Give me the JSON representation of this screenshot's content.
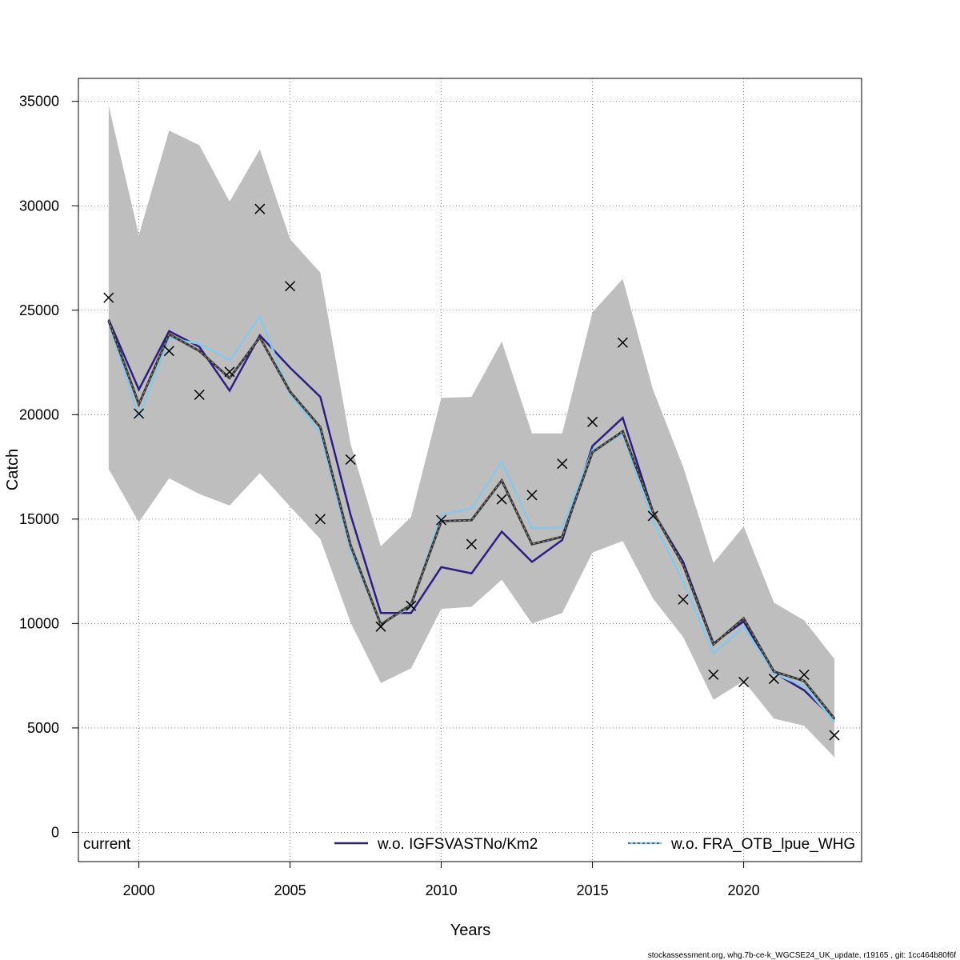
{
  "chart_data": {
    "type": "line",
    "xlabel": "Years",
    "ylabel": "Catch",
    "xlim": [
      1998.0,
      2023.9
    ],
    "ylim": [
      -1400,
      36100
    ],
    "grid": true,
    "x_ticks": [
      2000,
      2005,
      2010,
      2015,
      2020
    ],
    "y_ticks": [
      0,
      5000,
      10000,
      15000,
      20000,
      25000,
      30000,
      35000
    ],
    "x_tick_labels": [
      "2000",
      "2005",
      "2010",
      "2015",
      "2020"
    ],
    "y_tick_labels": [
      "0",
      "5000",
      "10000",
      "15000",
      "20000",
      "25000",
      "30000",
      "35000"
    ],
    "x": [
      1999,
      2000,
      2001,
      2002,
      2003,
      2004,
      2005,
      2006,
      2007,
      2008,
      2009,
      2010,
      2011,
      2012,
      2013,
      2014,
      2015,
      2016,
      2017,
      2018,
      2019,
      2020,
      2021,
      2022,
      2023
    ],
    "confidence_band": {
      "upper": [
        34800,
        28600,
        33600,
        32900,
        30200,
        32700,
        28400,
        26800,
        18600,
        13700,
        15100,
        20800,
        20850,
        23500,
        19100,
        19100,
        24900,
        26500,
        21200,
        17500,
        12900,
        14650,
        11000,
        10150,
        8300
      ],
      "lower": [
        17400,
        14850,
        16950,
        16200,
        15650,
        17200,
        15600,
        14050,
        10050,
        7150,
        7850,
        10700,
        10800,
        12100,
        10000,
        10500,
        13400,
        13950,
        11200,
        9350,
        6350,
        7250,
        5450,
        5100,
        3600
      ]
    },
    "series": [
      {
        "name": "current",
        "color": "#333333",
        "style": "solid-thick",
        "values": [
          24500,
          20500,
          23850,
          23050,
          21750,
          23700,
          21100,
          19400,
          13750,
          9950,
          10900,
          14900,
          14950,
          16850,
          13800,
          14150,
          18200,
          19200,
          15350,
          12800,
          9000,
          10250,
          7700,
          7250,
          5450
        ]
      },
      {
        "name": "w.o. IGFSVASTNo/Km2",
        "color": "#2b1f86",
        "style": "solid",
        "values": [
          24550,
          21200,
          24000,
          23250,
          21150,
          23800,
          22250,
          20850,
          15200,
          10500,
          10500,
          12700,
          12400,
          14400,
          12950,
          14000,
          18500,
          19850,
          15350,
          12950,
          9050,
          10100,
          7650,
          6800,
          5400
        ]
      },
      {
        "name": "w.o. FRA_OTB_lpue_WHG",
        "color": "#88c7ea",
        "style": "solid",
        "values": [
          24450,
          19900,
          23650,
          23400,
          22600,
          24700,
          21000,
          19100,
          13500,
          10000,
          10800,
          15200,
          15500,
          17750,
          14550,
          14600,
          18300,
          19050,
          14900,
          12000,
          8550,
          9850,
          7600,
          7000,
          5300
        ]
      }
    ],
    "observations": {
      "name": "observed catch",
      "marker": "x",
      "values": [
        25600,
        20050,
        23050,
        20950,
        22050,
        29850,
        26150,
        15000,
        17850,
        9850,
        10850,
        14950,
        13800,
        15950,
        16150,
        17650,
        19650,
        23450,
        15150,
        11150,
        7550,
        7200,
        7350,
        7550,
        4650
      ]
    },
    "legend": {
      "placement": "bottom",
      "entries": [
        "current",
        "w.o. IGFSVASTNo/Km2",
        "w.o. FRA_OTB_lpue_WHG"
      ]
    },
    "footer": "stockassessment.org, whg.7b-ce-k_WGCSE24_UK_update, r19165 , git: 1cc464b80f6f"
  }
}
